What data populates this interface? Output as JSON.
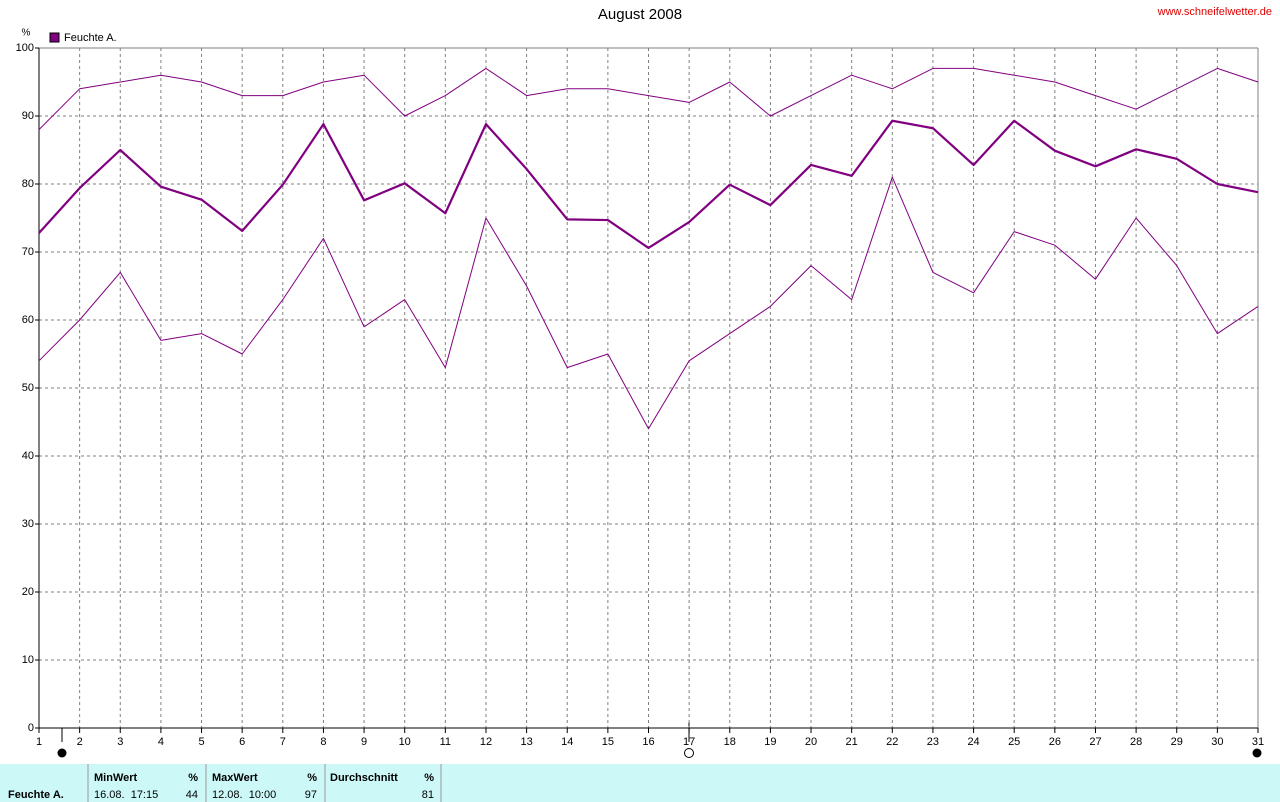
{
  "chart_data": {
    "type": "line",
    "title": "August 2008",
    "watermark": "www.schneifelwetter.de",
    "y_label": "%",
    "x": [
      1,
      2,
      3,
      4,
      5,
      6,
      7,
      8,
      9,
      10,
      11,
      12,
      13,
      14,
      15,
      16,
      17,
      18,
      19,
      20,
      21,
      22,
      23,
      24,
      25,
      26,
      27,
      28,
      29,
      30,
      31
    ],
    "xlim": [
      1,
      31
    ],
    "xticks": [
      1,
      2,
      3,
      4,
      5,
      6,
      7,
      8,
      9,
      10,
      11,
      12,
      13,
      14,
      15,
      16,
      17,
      18,
      19,
      20,
      21,
      22,
      23,
      24,
      25,
      26,
      27,
      28,
      29,
      30,
      31
    ],
    "ylim": [
      0,
      100
    ],
    "yticks": [
      0,
      10,
      20,
      30,
      40,
      50,
      60,
      70,
      80,
      90,
      100
    ],
    "grid": true,
    "series": [
      {
        "name": "Feuchte A.",
        "color": "#800080",
        "values": [
          72.8,
          79.4,
          85,
          79.6,
          77.7,
          73.1,
          79.9,
          88.8,
          77.6,
          80.1,
          75.7,
          88.8,
          82.2,
          74.8,
          74.7,
          70.6,
          74.4,
          79.9,
          76.9,
          82.8,
          81.2,
          89.3,
          88.2,
          82.8,
          89.3,
          84.9,
          82.6,
          85.1,
          83.7,
          80,
          78.8
        ]
      },
      {
        "color": "#800080",
        "values": [
          88,
          94,
          95,
          96,
          95,
          93,
          93,
          95,
          96,
          90,
          93,
          97,
          93,
          94,
          94,
          93,
          92,
          95,
          90,
          93,
          96,
          94,
          97,
          97,
          96,
          95,
          93,
          91,
          94,
          97,
          95
        ]
      },
      {
        "color": "#800080",
        "values": [
          54,
          60,
          67,
          57,
          58,
          55,
          63,
          72,
          59,
          63,
          53,
          75,
          65,
          53,
          55,
          44,
          54,
          58,
          62,
          68,
          63,
          81,
          67,
          64,
          73,
          71,
          66,
          75,
          68,
          58,
          62
        ]
      }
    ]
  },
  "summary": {
    "row_label": "Feuchte A.",
    "columns": [
      {
        "header": "MinWert",
        "unit": "%",
        "when": "16.08.  17:15",
        "value": "44"
      },
      {
        "header": "MaxWert",
        "unit": "%",
        "when": "12.08.  10:00",
        "value": "97"
      },
      {
        "header": "Durchschnitt",
        "unit": "%",
        "value": "81"
      }
    ]
  }
}
